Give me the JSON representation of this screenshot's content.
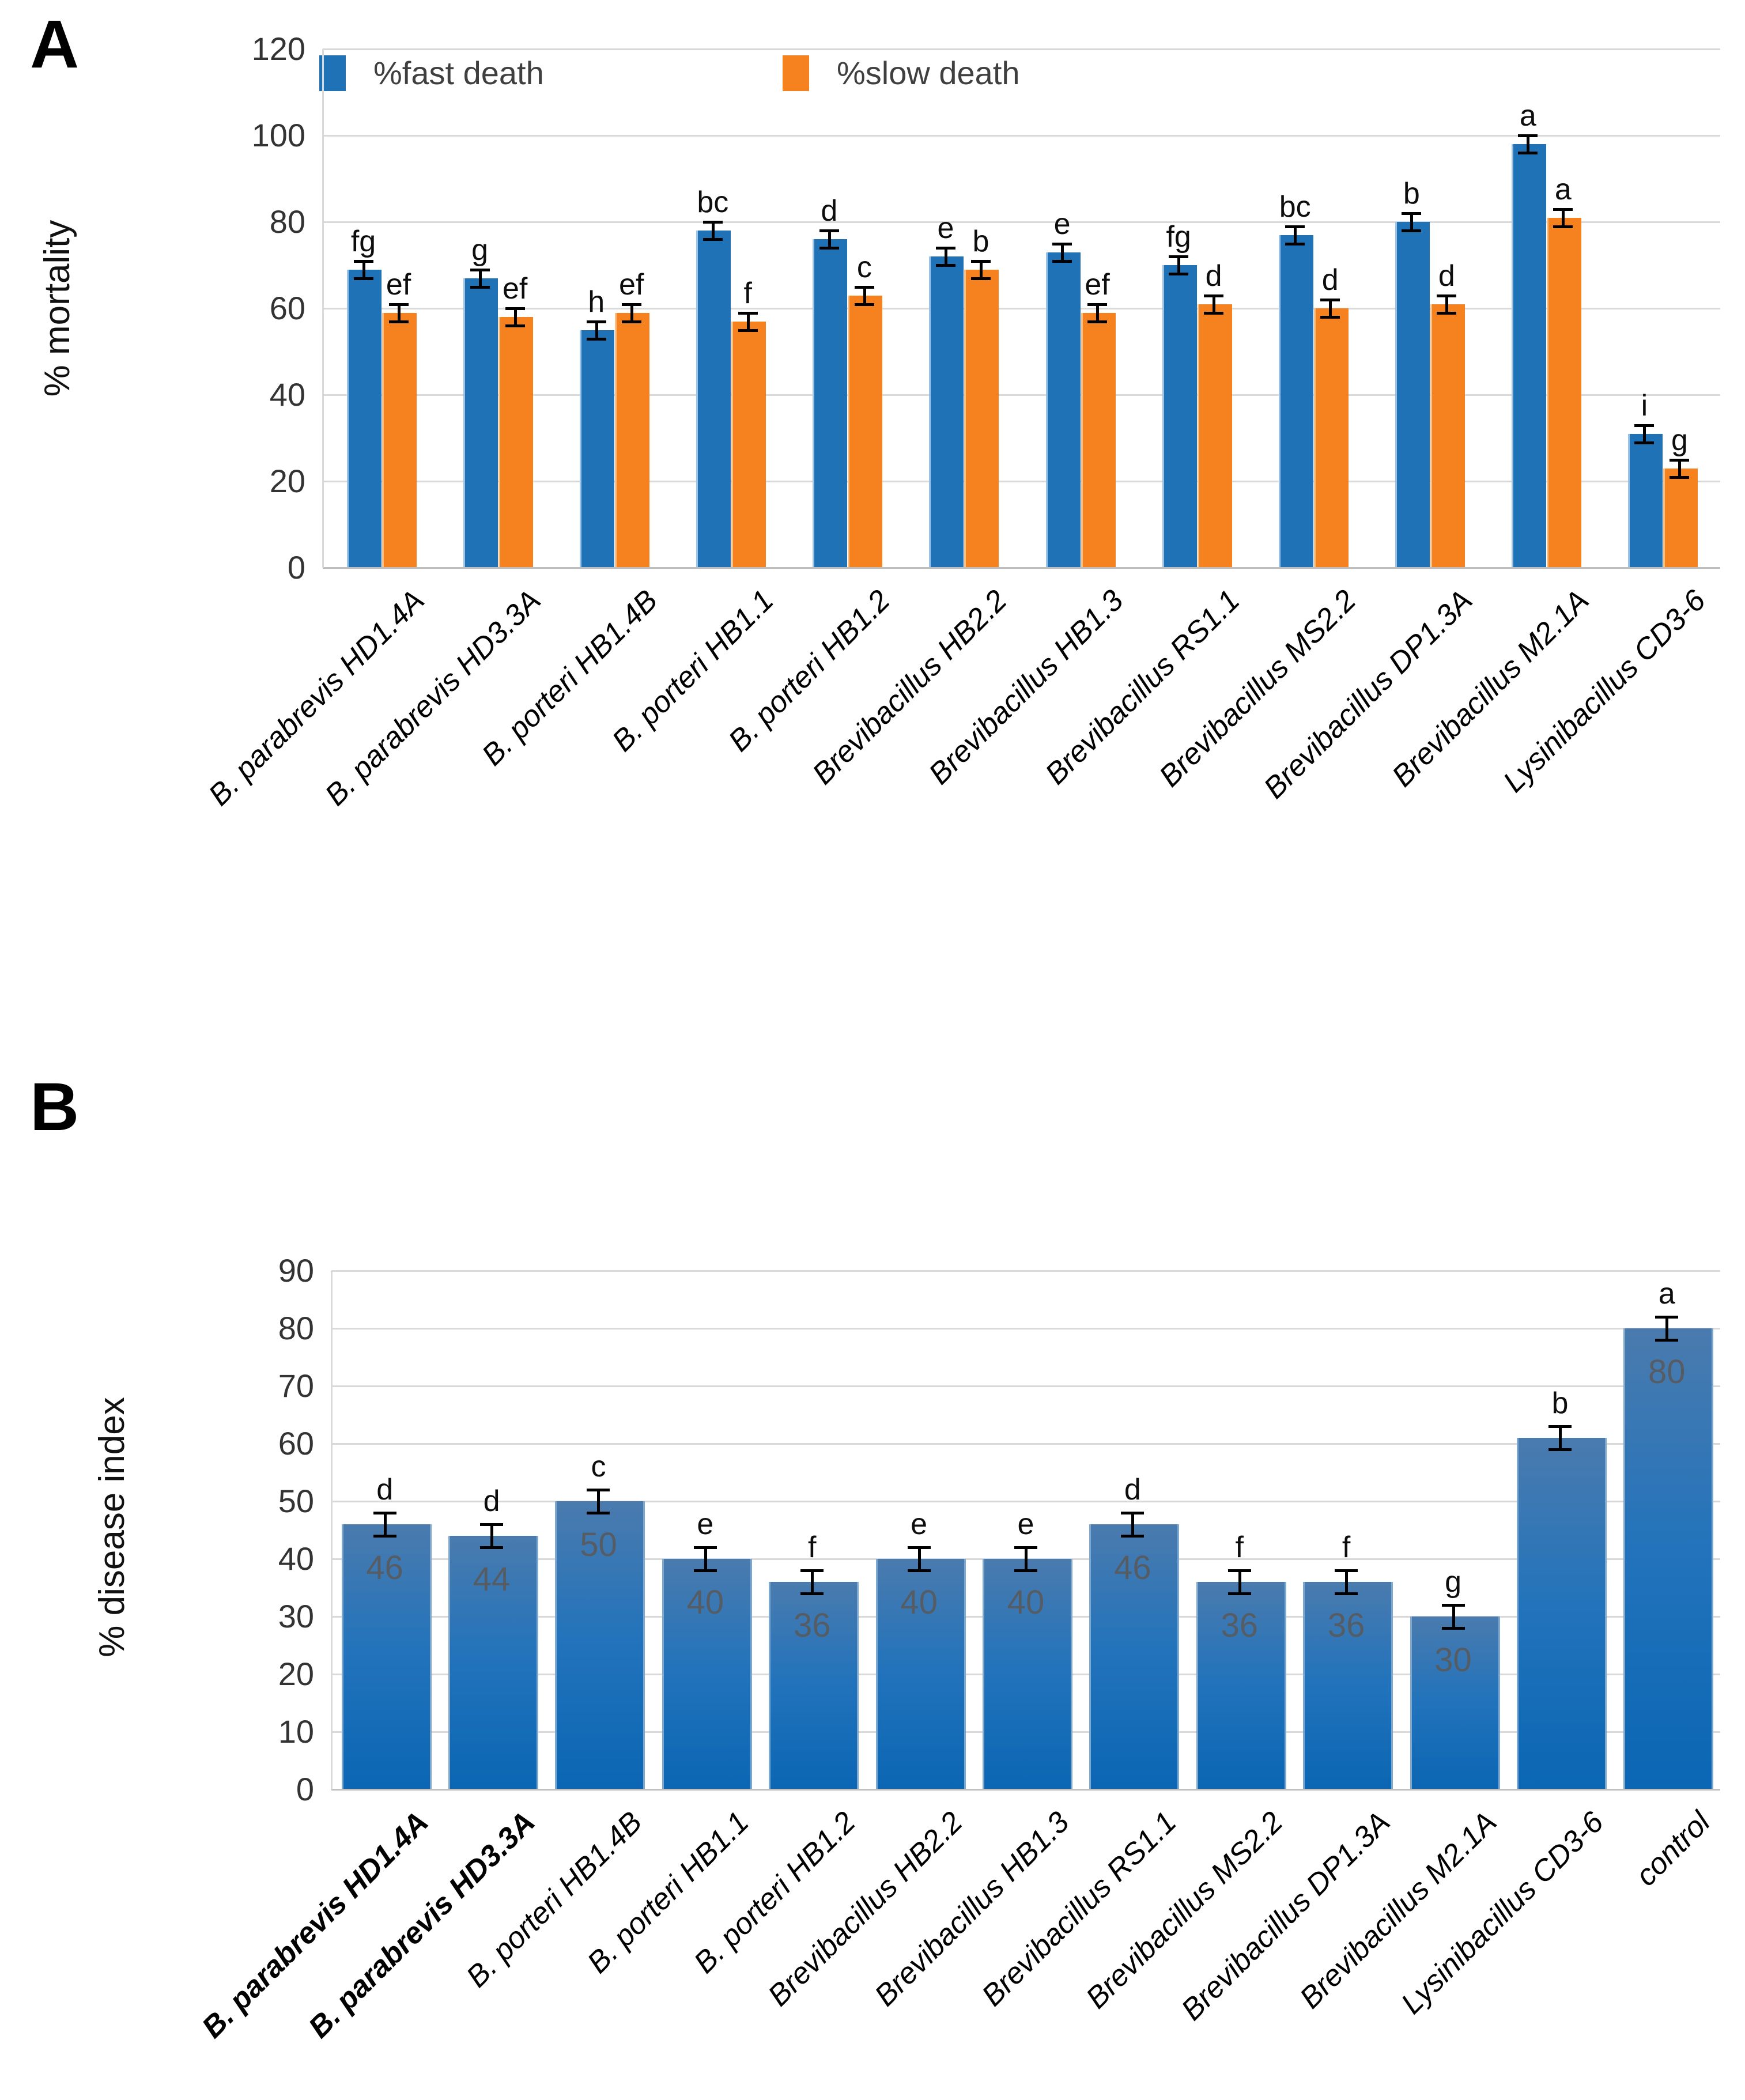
{
  "figure": {
    "panels": [
      {
        "label": "A"
      },
      {
        "label": "B"
      }
    ]
  },
  "colors": {
    "fast_death_blue": "#1F72B5",
    "slow_death_orange": "#F5821F",
    "grid_gray": "#D9D9D9",
    "axis_gray": "#BFBFBF",
    "letter_black": "#0D0D0D",
    "bar_label_gray": "#595959"
  },
  "chart_data": [
    {
      "type": "bar",
      "panel": "A",
      "title": "",
      "xlabel": "",
      "ylabel": "% mortality",
      "ylim": [
        0,
        120
      ],
      "ystep": 20,
      "yticks": [
        0,
        20,
        40,
        60,
        80,
        100,
        120
      ],
      "grid": true,
      "legend_position": "top",
      "legend": [
        {
          "label": "%fast death",
          "color": "#1F72B5"
        },
        {
          "label": "%slow death",
          "color": "#F5821F"
        }
      ],
      "categories": [
        "B. parabrevis HD1.4A",
        "B. parabrevis HD3.3A",
        "B. porteri HB1.4B",
        "B. porteri HB1.1",
        "B. porteri HB1.2",
        "Brevibacillus HB2.2",
        "Brevibacillus HB1.3",
        "Brevibacillus RS1.1",
        "Brevibacillus MS2.2",
        "Brevibacillus DP1.3A",
        "Brevibacillus M2.1A",
        "Lysinibacillus CD3-6"
      ],
      "series": [
        {
          "name": "%fast death",
          "color": "#1F72B5",
          "edge_color": "#9CC2E5",
          "values": [
            69,
            67,
            55,
            78,
            76,
            72,
            73,
            70,
            77,
            80,
            98,
            31
          ],
          "sig_letters": [
            "fg",
            "g",
            "h",
            "bc",
            "d",
            "e",
            "e",
            "fg",
            "bc",
            "b",
            "a",
            "i"
          ]
        },
        {
          "name": "%slow death",
          "color": "#F5821F",
          "edge_color": "#F9C188",
          "values": [
            59,
            58,
            59,
            57,
            63,
            69,
            59,
            61,
            60,
            61,
            81,
            23
          ],
          "sig_letters": [
            "ef",
            "ef",
            "ef",
            "f",
            "c",
            "b",
            "ef",
            "d",
            "d",
            "d",
            "a",
            "g"
          ]
        }
      ],
      "error_bar": 2
    },
    {
      "type": "bar",
      "panel": "B",
      "title": "",
      "xlabel": "",
      "ylabel": "% disease index",
      "ylim": [
        0,
        90
      ],
      "ystep": 10,
      "yticks": [
        0,
        10,
        20,
        30,
        40,
        50,
        60,
        70,
        80,
        90
      ],
      "grid": true,
      "legend_position": "none",
      "categories": [
        "B. parabrevis HD1.4A",
        "B. parabrevis HD3.3A",
        "B. porteri HB1.4B",
        "B. porteri HB1.1",
        "B. porteri HB1.2",
        "Brevibacillus HB2.2",
        "Brevibacillus HB1.3",
        "Brevibacillus RS1.1",
        "Brevibacillus MS2.2",
        "Brevibacillus DP1.3A",
        "Brevibacillus M2.1A",
        "Lysinibacillus CD3-6",
        "control"
      ],
      "bold_categories": [
        "B. parabrevis HD1.4A",
        "B. parabrevis HD3.3A"
      ],
      "values": [
        46,
        44,
        50,
        40,
        36,
        40,
        40,
        46,
        36,
        36,
        30,
        61,
        80
      ],
      "bar_value_labels": [
        "46",
        "44",
        "50",
        "40",
        "36",
        "40",
        "40",
        "46",
        "36",
        "36",
        "30",
        "",
        "80"
      ],
      "sig_letters": [
        "d",
        "d",
        "c",
        "e",
        "f",
        "e",
        "e",
        "d",
        "f",
        "f",
        "g",
        "b",
        "a"
      ],
      "bar_gradient": [
        "#4A7BAE",
        "#2273BB",
        "#0B66B3"
      ],
      "bar_edge_color": "#7FA8CE",
      "error_bar": 2
    }
  ]
}
